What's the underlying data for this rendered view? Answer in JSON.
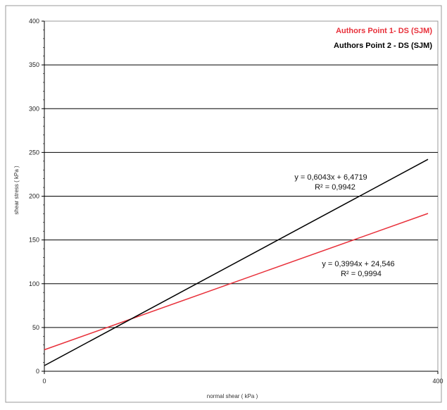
{
  "chart_data": {
    "type": "line",
    "title": "",
    "xlabel": "normal shear ( kPa )",
    "ylabel": "shear stress ( kPa )",
    "xlim": [
      0,
      400
    ],
    "ylim": [
      0,
      400
    ],
    "x_ticks": [
      "0",
      "400"
    ],
    "y_ticks": [
      "0",
      "50",
      "100",
      "150",
      "200",
      "250",
      "300",
      "350",
      "400"
    ],
    "grid": "horizontal",
    "legend_position": "top-right",
    "series": [
      {
        "name": "Authors Point 1- DS  (SJM)",
        "color": "#e8303a",
        "x": [
          0,
          390
        ],
        "y": [
          24.546,
          180.3
        ],
        "equation": "y = 0,3994x + 24,546",
        "r2": "R² = 0,9994"
      },
      {
        "name": "Authors Point 2 - DS  (SJM)",
        "color": "#000000",
        "x": [
          0,
          390
        ],
        "y": [
          6.4719,
          242.1
        ],
        "equation": "y = 0,6043x + 6,4719",
        "r2": "R² = 0,9942"
      }
    ]
  }
}
